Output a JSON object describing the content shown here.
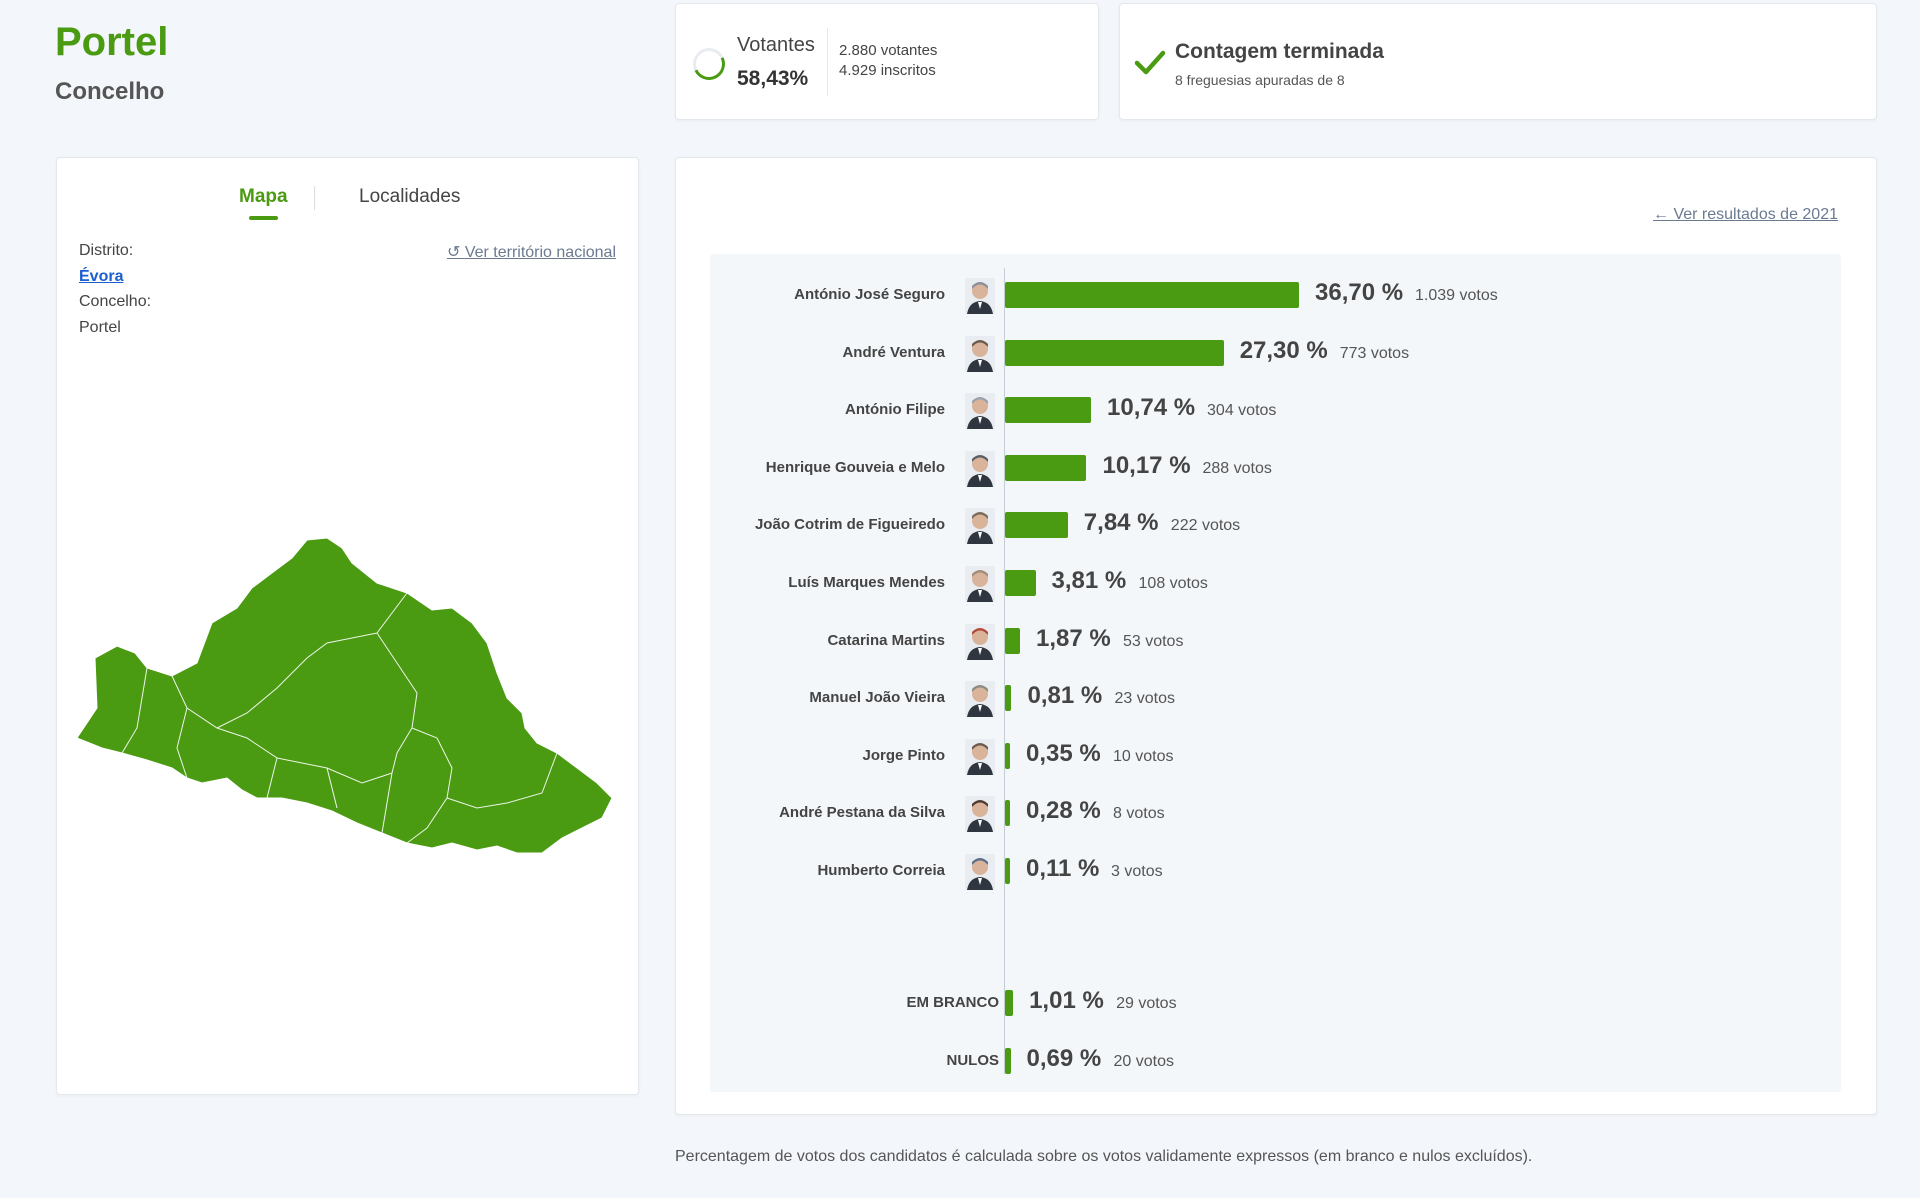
{
  "header": {
    "title": "Portel",
    "subtitle": "Concelho"
  },
  "votantes": {
    "label": "Votantes",
    "percent": "58,43%",
    "votantes_text": "2.880 votantes",
    "inscritos_text": "4.929 inscritos"
  },
  "contagem": {
    "title": "Contagem terminada",
    "subtitle": "8 freguesias apuradas de 8"
  },
  "map_panel": {
    "tabs": [
      {
        "label": "Mapa"
      },
      {
        "label": "Localidades"
      }
    ],
    "distrito_label": "Distrito:",
    "distrito_value": "Évora",
    "concelho_label": "Concelho:",
    "concelho_value": "Portel",
    "national_link": "Ver território nacional",
    "map_color": "#4a9a12"
  },
  "results": {
    "link_2021": "Ver resultados de 2021",
    "bar_color": "#4a9a12"
  },
  "chart_data": {
    "type": "bar",
    "orientation": "horizontal",
    "unit": "%",
    "categories": [
      "António José Seguro",
      "André Ventura",
      "António Filipe",
      "Henrique Gouveia e Melo",
      "João Cotrim de Figueiredo",
      "Luís Marques Mendes",
      "Catarina Martins",
      "Manuel João Vieira",
      "Jorge Pinto",
      "André Pestana da Silva",
      "Humberto Correia",
      "EM BRANCO",
      "NULOS"
    ],
    "values": [
      36.7,
      27.3,
      10.74,
      10.17,
      7.84,
      3.81,
      1.87,
      0.81,
      0.35,
      0.28,
      0.11,
      1.01,
      0.69
    ],
    "pct_labels": [
      "36,70 %",
      "27,30 %",
      "10,74 %",
      "10,17 %",
      "7,84 %",
      "3,81 %",
      "1,87 %",
      "0,81 %",
      "0,35 %",
      "0,28 %",
      "0,11 %",
      "1,01 %",
      "0,69 %"
    ],
    "votes_labels": [
      "1.039 votos",
      "773 votos",
      "304 votos",
      "288 votos",
      "222 votos",
      "108 votos",
      "53 votos",
      "23 votos",
      "10 votos",
      "8 votos",
      "3 votos",
      "29 votos",
      "20 votos"
    ],
    "has_avatar": [
      true,
      true,
      true,
      true,
      true,
      true,
      true,
      true,
      true,
      true,
      true,
      false,
      false
    ]
  },
  "footnote": "Percentagem de votos dos candidatos é calculada sobre os votos validamente expressos (em branco e nulos excluídos)."
}
